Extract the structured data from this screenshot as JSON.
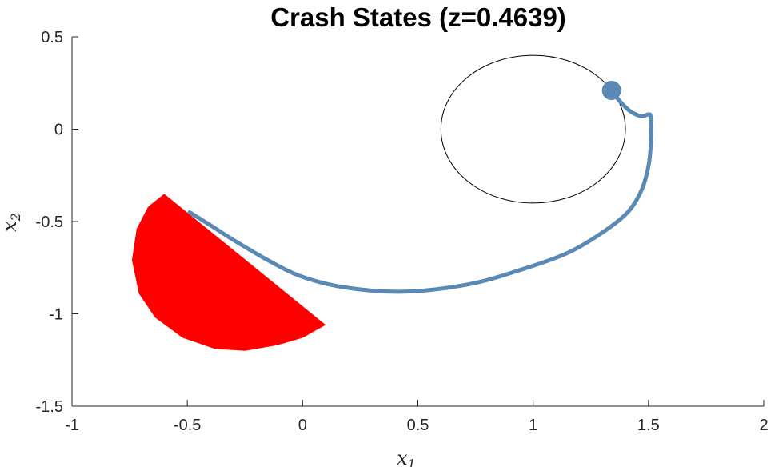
{
  "chart_data": {
    "type": "line",
    "title": "Crash States (z=0.4639)",
    "xlabel": "x",
    "xlabel_sub": "1",
    "ylabel": "x",
    "ylabel_sub": "2",
    "xlim": [
      -1,
      2
    ],
    "ylim": [
      -1.5,
      0.5
    ],
    "xticks": [
      -1,
      -0.5,
      0,
      0.5,
      1,
      1.5,
      2
    ],
    "yticks": [
      -1.5,
      -1,
      -0.5,
      0,
      0.5
    ],
    "xtick_labels": [
      "-1",
      "-0.5",
      "0",
      "0.5",
      "1",
      "1.5",
      "2"
    ],
    "ytick_labels": [
      "-1.5",
      "-1",
      "-0.5",
      "0",
      "0.5"
    ],
    "grid": false,
    "colors": {
      "trajectory": "#5a8ab4",
      "crash_region": "#ff0000",
      "circle": "#000000",
      "axis": "#262626"
    },
    "circle": {
      "center": [
        1.0,
        0.0
      ],
      "rx": 0.4,
      "ry": 0.4
    },
    "crash_region": {
      "shape": "half-disk",
      "chord": [
        [
          -0.6,
          -0.35
        ],
        [
          0.1,
          -1.06
        ]
      ],
      "points": [
        [
          -0.6,
          -0.35
        ],
        [
          -0.67,
          -0.42
        ],
        [
          -0.72,
          -0.54
        ],
        [
          -0.74,
          -0.71
        ],
        [
          -0.71,
          -0.89
        ],
        [
          -0.64,
          -1.02
        ],
        [
          -0.52,
          -1.13
        ],
        [
          -0.38,
          -1.19
        ],
        [
          -0.25,
          -1.2
        ],
        [
          -0.11,
          -1.17
        ],
        [
          0.0,
          -1.13
        ],
        [
          0.1,
          -1.06
        ]
      ]
    },
    "trajectory": {
      "x": [
        1.34,
        1.37,
        1.4,
        1.43,
        1.47,
        1.5,
        1.51,
        1.51,
        1.5,
        1.47,
        1.41,
        1.3,
        1.15,
        0.95,
        0.72,
        0.44,
        0.2,
        0.0,
        -0.15,
        -0.3,
        -0.4,
        -0.49
      ],
      "y": [
        0.21,
        0.16,
        0.12,
        0.09,
        0.07,
        0.08,
        0.06,
        -0.08,
        -0.2,
        -0.33,
        -0.45,
        -0.56,
        -0.67,
        -0.76,
        -0.84,
        -0.88,
        -0.86,
        -0.8,
        -0.71,
        -0.6,
        -0.52,
        -0.45
      ]
    },
    "marker": {
      "x": 1.34,
      "y": 0.21
    }
  }
}
